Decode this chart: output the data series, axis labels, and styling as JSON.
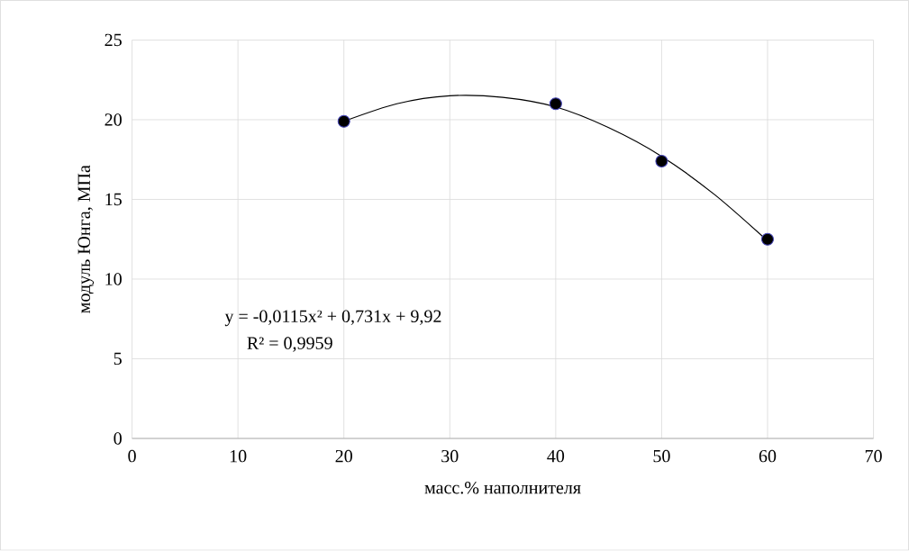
{
  "chart_data": {
    "type": "line",
    "xlabel": "масс.% наполнителя",
    "ylabel": "модуль Юнга, МПа",
    "xlim": [
      0,
      70
    ],
    "xticks": [
      0,
      10,
      20,
      30,
      40,
      50,
      60,
      70
    ],
    "ylim": [
      0,
      25
    ],
    "yticks": [
      0,
      5,
      10,
      15,
      20,
      25
    ],
    "grid": true,
    "series": [
      {
        "type": "scatter",
        "marker": "circle",
        "color": "#000000",
        "x": [
          20,
          40,
          50,
          60
        ],
        "values": [
          19.9,
          21.0,
          17.4,
          12.5
        ]
      },
      {
        "marker": "none",
        "color": "#000000",
        "x": [
          20,
          25,
          30,
          35,
          40,
          45,
          50,
          55,
          60
        ],
        "values": [
          19.9,
          21.0,
          21.5,
          21.4,
          20.8,
          19.5,
          17.7,
          15.3,
          12.4
        ]
      }
    ],
    "annotations": [
      "y = -0,0115x² + 0,731x + 9,92",
      "R² = 0,9959"
    ]
  }
}
